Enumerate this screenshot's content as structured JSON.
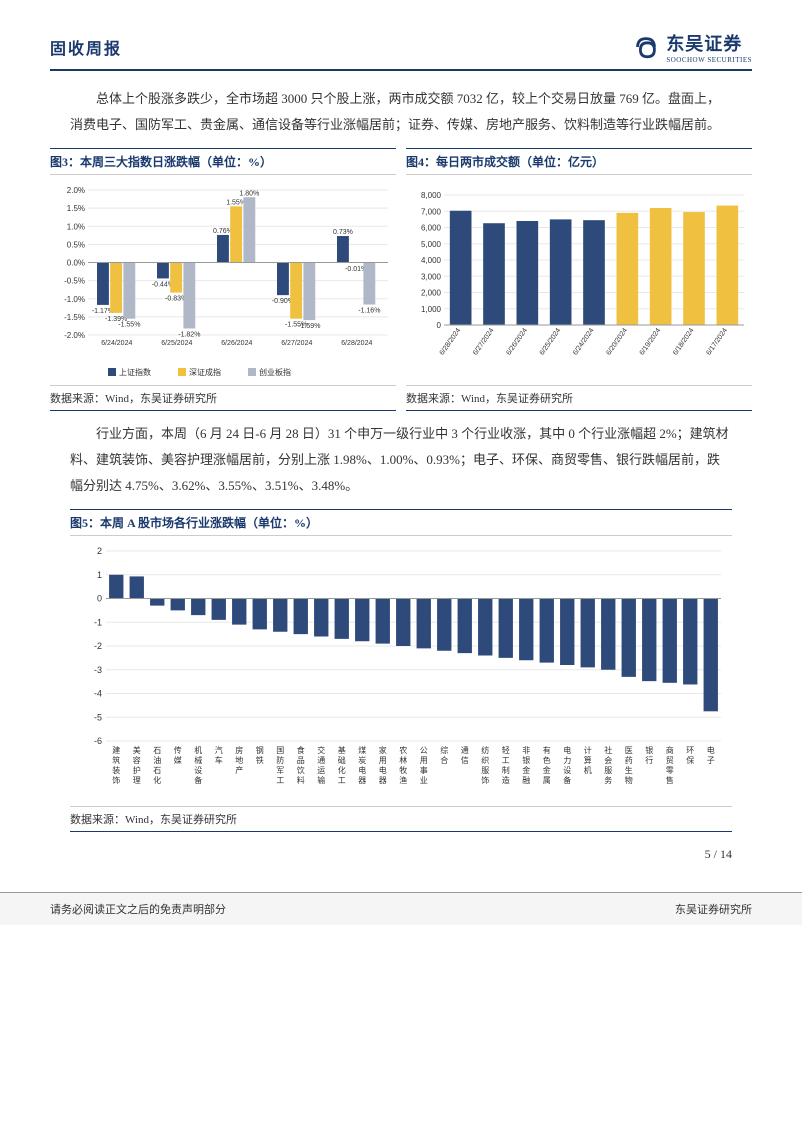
{
  "header": {
    "report_type": "固收周报",
    "logo_cn": "东吴证券",
    "logo_en": "SOOCHOW SECURITIES",
    "brand_color": "#1a3a6e"
  },
  "para1": "总体上个股涨多跌少，全市场超 3000 只个股上涨，两市成交额 7032 亿，较上个交易日放量 769 亿。盘面上，消费电子、国防军工、贵金属、通信设备等行业涨幅居前；证券、传媒、房地产服务、饮料制造等行业跌幅居前。",
  "chart3": {
    "title": "图3：本周三大指数日涨跌幅（单位：%）",
    "type": "grouped-bar",
    "categories": [
      "6/24/2024",
      "6/25/2024",
      "6/26/2024",
      "6/27/2024",
      "6/28/2024"
    ],
    "series": [
      {
        "name": "上证指数",
        "color": "#2e4a7a",
        "values": [
          -1.17,
          -0.44,
          0.76,
          -0.9,
          0.73
        ]
      },
      {
        "name": "深证成指",
        "color": "#f0c040",
        "values": [
          -1.39,
          -0.83,
          1.55,
          -1.55,
          -0.01
        ]
      },
      {
        "name": "创业板指",
        "color": "#b0b8c8",
        "values": [
          -1.55,
          -1.82,
          1.8,
          -1.59,
          -1.16
        ]
      }
    ],
    "ylim": [
      -2.0,
      2.0
    ],
    "ytick_step": 0.5,
    "y_format": "percent",
    "grid_color": "#e8e8e8",
    "label_fontsize": 8,
    "source": "数据来源：Wind，东吴证券研究所"
  },
  "chart4": {
    "title": "图4：每日两市成交额（单位：亿元）",
    "type": "bar",
    "categories": [
      "6/28/2024",
      "6/27/2024",
      "6/26/2024",
      "6/25/2024",
      "6/24/2024",
      "6/20/2024",
      "6/19/2024",
      "6/18/2024",
      "6/17/2024"
    ],
    "values": [
      7032,
      6263,
      6400,
      6500,
      6450,
      6900,
      7200,
      6950,
      7350
    ],
    "colors": [
      "#2e4a7a",
      "#2e4a7a",
      "#2e4a7a",
      "#2e4a7a",
      "#2e4a7a",
      "#f0c040",
      "#f0c040",
      "#f0c040",
      "#f0c040"
    ],
    "ylim": [
      0,
      8000
    ],
    "ytick_step": 1000,
    "grid_color": "#e8e8e8",
    "label_fontsize": 8,
    "source": "数据来源：Wind，东吴证券研究所"
  },
  "para2": "行业方面，本周（6 月 24 日-6 月 28 日）31 个申万一级行业中 3 个行业收涨，其中 0 个行业涨幅超 2%；建筑材料、建筑装饰、美容护理涨幅居前，分别上涨 1.98%、1.00%、0.93%；电子、环保、商贸零售、银行跌幅居前，跌幅分别达 4.75%、3.62%、3.55%、3.51%、3.48%。",
  "chart5": {
    "title": "图5：本周 A 股市场各行业涨跌幅（单位：%）",
    "type": "bar",
    "categories": [
      "建筑装饰",
      "美容护理",
      "石油石化",
      "传媒",
      "机械设备",
      "汽车",
      "房地产",
      "钢铁",
      "国防军工",
      "食品饮料",
      "交通运输",
      "基础化工",
      "煤炭电器",
      "家用电器",
      "农林牧渔",
      "公用事业",
      "综合",
      "通信",
      "纺织服饰",
      "轻工制造",
      "非银金融",
      "有色金属",
      "电力设备",
      "计算机",
      "社会服务",
      "医药生物",
      "银行",
      "商贸零售",
      "环保",
      "电子"
    ],
    "values": [
      1.0,
      0.93,
      -0.3,
      -0.5,
      -0.7,
      -0.9,
      -1.1,
      -1.3,
      -1.4,
      -1.5,
      -1.6,
      -1.7,
      -1.8,
      -1.9,
      -2.0,
      -2.1,
      -2.2,
      -2.3,
      -2.4,
      -2.5,
      -2.6,
      -2.7,
      -2.8,
      -2.9,
      -3.0,
      -3.3,
      -3.48,
      -3.55,
      -3.62,
      -4.75
    ],
    "bar_color": "#2e4a7a",
    "ylim": [
      -6,
      2
    ],
    "ytick_step": 1,
    "grid_color": "#e8e8e8",
    "label_fontsize": 8,
    "source": "数据来源：Wind，东吴证券研究所"
  },
  "page_num": "5 / 14",
  "footer": {
    "left": "请务必阅读正文之后的免责声明部分",
    "right": "东吴证券研究所"
  }
}
